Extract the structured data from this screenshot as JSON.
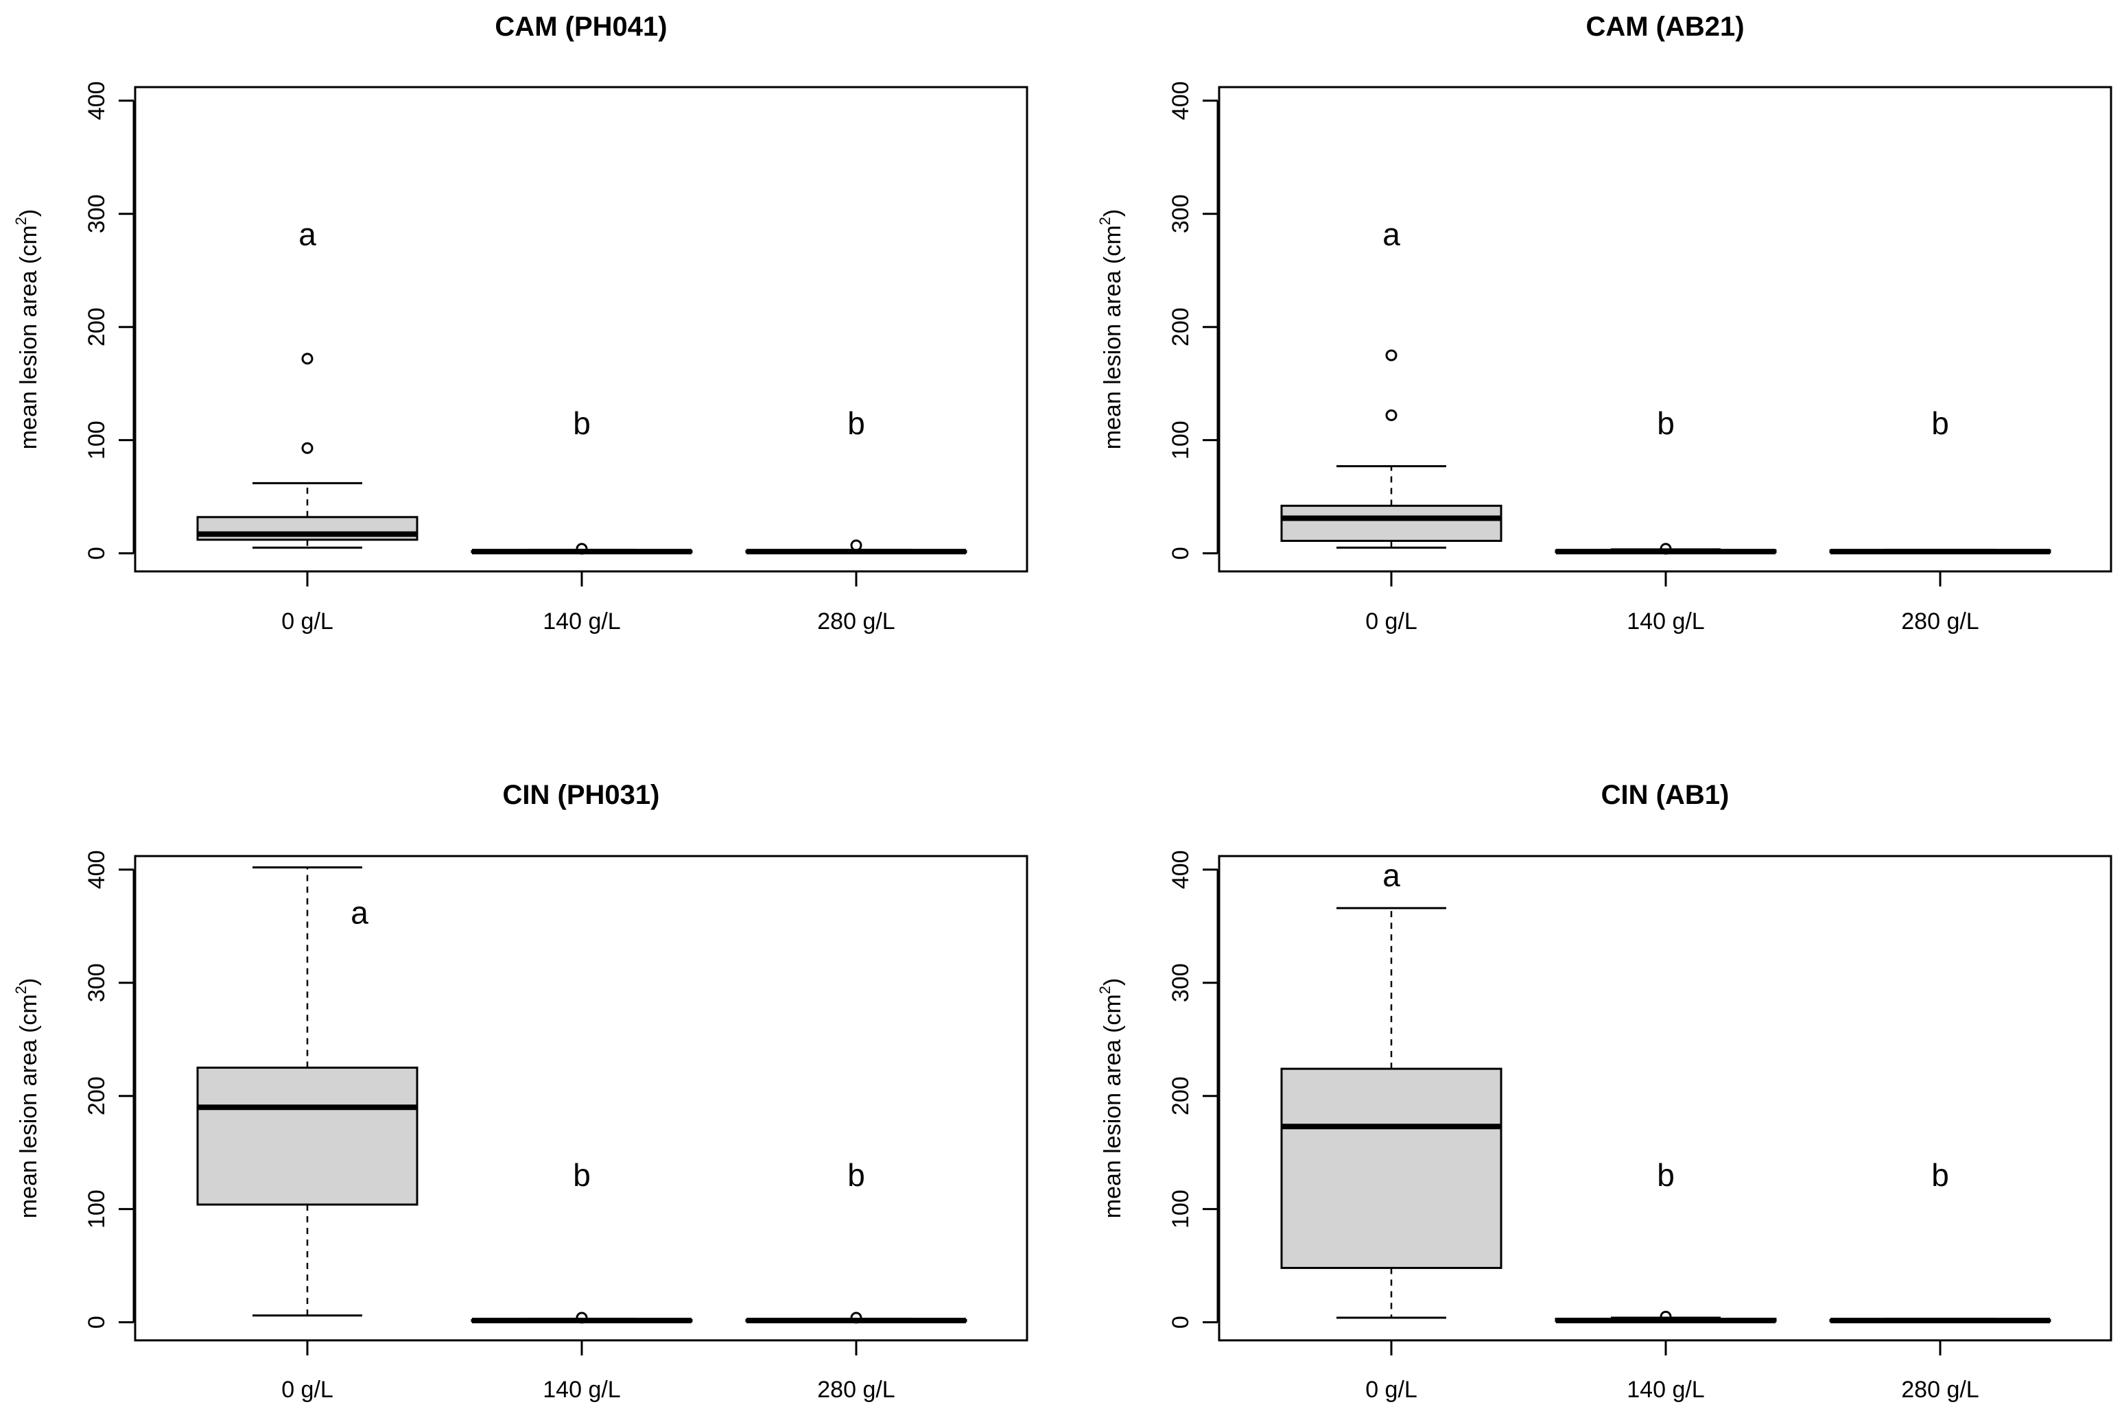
{
  "chart_data": [
    {
      "type": "box",
      "title": "CAM (PH041)",
      "ylabel": "mean lesion area (cm",
      "ylabel_sup": "2",
      "ylabel_close": ")",
      "ylim": [
        -16,
        412
      ],
      "yticks": [
        0,
        100,
        200,
        300,
        400
      ],
      "yticklabels": [
        "0",
        "100",
        "200",
        "300",
        "400"
      ],
      "categories": [
        "0 g/L",
        "140 g/L",
        "280 g/L"
      ],
      "boxes": [
        {
          "q1": 12,
          "median": 17,
          "q3": 32,
          "whisker_low": 5,
          "whisker_high": 62,
          "outliers": [
            93,
            172
          ]
        },
        {
          "q1": 1,
          "median": 1.5,
          "q3": 2,
          "whisker_low": 0.5,
          "whisker_high": 3,
          "outliers": [
            4
          ]
        },
        {
          "q1": 1,
          "median": 1.5,
          "q3": 2,
          "whisker_low": 0.5,
          "whisker_high": 3,
          "outliers": [
            7
          ]
        }
      ],
      "letters": [
        {
          "text": "a",
          "y": 282
        },
        {
          "text": "b",
          "y": 115
        },
        {
          "text": "b",
          "y": 115
        }
      ]
    },
    {
      "type": "box",
      "title": "CAM (AB21)",
      "ylabel": "mean lesion area (cm",
      "ylabel_sup": "2",
      "ylabel_close": ")",
      "ylim": [
        -16,
        412
      ],
      "yticks": [
        0,
        100,
        200,
        300,
        400
      ],
      "yticklabels": [
        "0",
        "100",
        "200",
        "300",
        "400"
      ],
      "categories": [
        "0 g/L",
        "140 g/L",
        "280 g/L"
      ],
      "boxes": [
        {
          "q1": 11,
          "median": 31,
          "q3": 42,
          "whisker_low": 5,
          "whisker_high": 77,
          "outliers": [
            122,
            175
          ]
        },
        {
          "q1": 1,
          "median": 1.5,
          "q3": 2.5,
          "whisker_low": 0.5,
          "whisker_high": 3.5,
          "outliers": [
            4
          ]
        },
        {
          "q1": 1,
          "median": 1.5,
          "q3": 2.5,
          "whisker_low": 0.5,
          "whisker_high": 3,
          "outliers": []
        }
      ],
      "letters": [
        {
          "text": "a",
          "y": 282
        },
        {
          "text": "b",
          "y": 115
        },
        {
          "text": "b",
          "y": 115
        }
      ]
    },
    {
      "type": "box",
      "title": "CIN (PH031)",
      "ylabel": "mean lesion area (cm",
      "ylabel_sup": "2",
      "ylabel_close": ")",
      "ylim": [
        -16,
        412
      ],
      "yticks": [
        0,
        100,
        200,
        300,
        400
      ],
      "yticklabels": [
        "0",
        "100",
        "200",
        "300",
        "400"
      ],
      "categories": [
        "0 g/L",
        "140 g/L",
        "280 g/L"
      ],
      "boxes": [
        {
          "q1": 104,
          "median": 190,
          "q3": 225,
          "whisker_low": 6,
          "whisker_high": 402,
          "outliers": []
        },
        {
          "q1": 1,
          "median": 1.5,
          "q3": 2,
          "whisker_low": 0.5,
          "whisker_high": 3,
          "outliers": [
            4
          ]
        },
        {
          "q1": 1,
          "median": 1.5,
          "q3": 2,
          "whisker_low": 0.5,
          "whisker_high": 3,
          "outliers": [
            4
          ]
        }
      ],
      "letters": [
        {
          "text": "a",
          "y": 362
        },
        {
          "text": "b",
          "y": 130
        },
        {
          "text": "b",
          "y": 130
        }
      ]
    },
    {
      "type": "box",
      "title": "CIN (AB1)",
      "ylabel": "mean lesion area (cm",
      "ylabel_sup": "2",
      "ylabel_close": ")",
      "ylim": [
        -16,
        412
      ],
      "yticks": [
        0,
        100,
        200,
        300,
        400
      ],
      "yticklabels": [
        "0",
        "100",
        "200",
        "300",
        "400"
      ],
      "categories": [
        "0 g/L",
        "140 g/L",
        "280 g/L"
      ],
      "boxes": [
        {
          "q1": 48,
          "median": 173,
          "q3": 224,
          "whisker_low": 4,
          "whisker_high": 366,
          "outliers": []
        },
        {
          "q1": 1,
          "median": 1.5,
          "q3": 3,
          "whisker_low": 0.5,
          "whisker_high": 4,
          "outliers": [
            5
          ]
        },
        {
          "q1": 1,
          "median": 1.5,
          "q3": 2,
          "whisker_low": 0.5,
          "whisker_high": 3,
          "outliers": []
        }
      ],
      "letters": [
        {
          "text": "a",
          "y": 395
        },
        {
          "text": "b",
          "y": 130
        },
        {
          "text": "b",
          "y": 130
        }
      ]
    }
  ]
}
